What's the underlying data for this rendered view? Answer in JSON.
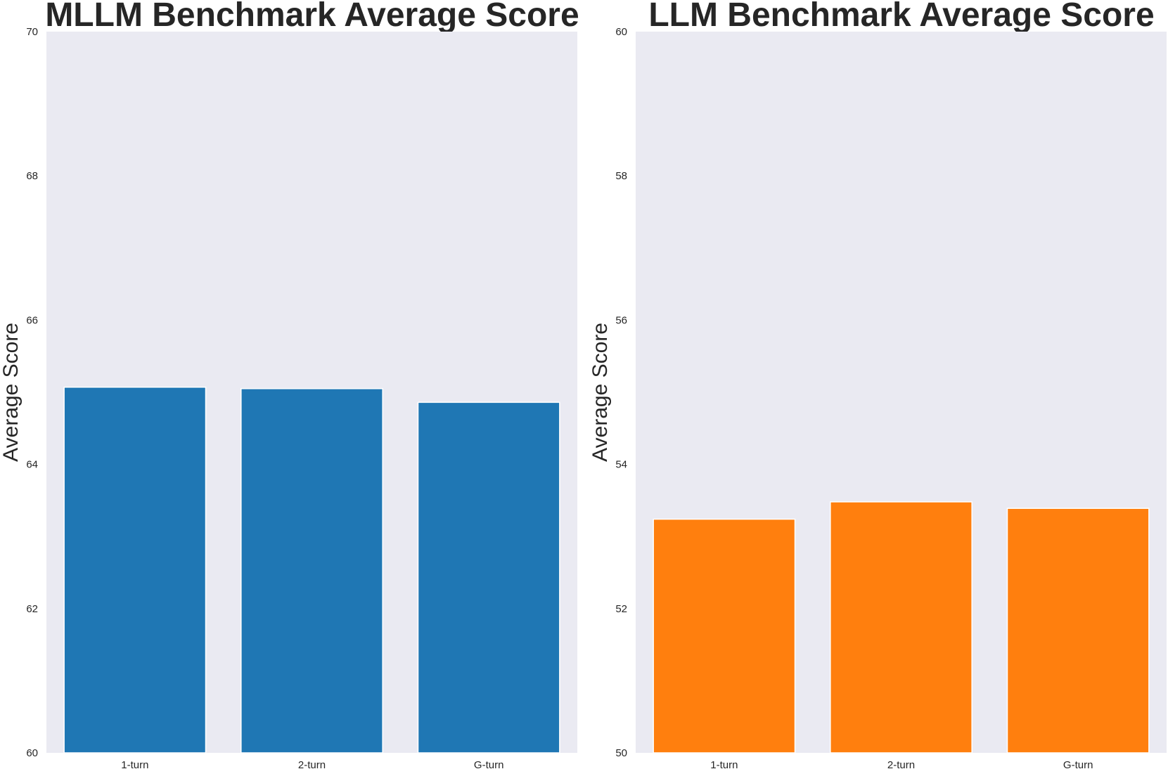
{
  "colors": {
    "plot_background": "#eaeaf2",
    "text": "#262626",
    "bar_edge": "#ffffff"
  },
  "chart_data": [
    {
      "type": "bar",
      "title": "MLLM Benchmark Average Score",
      "xlabel": "",
      "ylabel": "Average Score",
      "categories": [
        "1-turn",
        "2-turn",
        "G-turn"
      ],
      "values": [
        65.07,
        65.05,
        64.86
      ],
      "ylim": [
        60,
        70
      ],
      "yticks": [
        60,
        62,
        64,
        66,
        68,
        70
      ],
      "color": "#1f77b4",
      "grid": false
    },
    {
      "type": "bar",
      "title": "LLM Benchmark Average Score",
      "xlabel": "",
      "ylabel": "Average Score",
      "categories": [
        "1-turn",
        "2-turn",
        "G-turn"
      ],
      "values": [
        53.24,
        53.48,
        53.39
      ],
      "ylim": [
        50,
        60
      ],
      "yticks": [
        50,
        52,
        54,
        56,
        58,
        60
      ],
      "color": "#ff7f0e",
      "grid": false
    }
  ]
}
